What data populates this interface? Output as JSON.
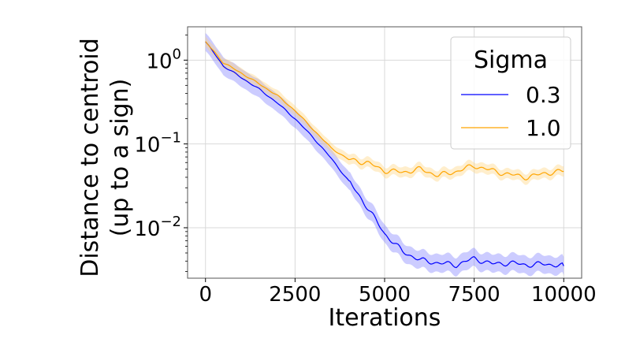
{
  "chart_data": {
    "type": "line",
    "xlabel": "Iterations",
    "ylabel_lines": [
      "Distance to centroid",
      "(up to a sign)"
    ],
    "yscale": "log",
    "xlim": [
      -500,
      10500
    ],
    "ylim": [
      0.0025,
      2.5
    ],
    "grid": true,
    "x_ticks": [
      0,
      2500,
      5000,
      7500,
      10000
    ],
    "x_tick_labels": [
      "0",
      "2500",
      "5000",
      "7500",
      "10000"
    ],
    "y_ticks": [
      {
        "value": 1,
        "base": "10",
        "exp": "0"
      },
      {
        "value": 0.1,
        "base": "10",
        "exp": "−1"
      },
      {
        "value": 0.01,
        "base": "10",
        "exp": "−2"
      }
    ],
    "legend": {
      "title": "Sigma",
      "position": "top-right"
    },
    "x": [
      0,
      250,
      500,
      1000,
      1500,
      2000,
      2500,
      3000,
      3500,
      4000,
      4500,
      5000,
      5500,
      6000,
      6500,
      7000,
      7500,
      8000,
      8500,
      9000,
      9500,
      10000
    ],
    "series": [
      {
        "name": "0.3",
        "color": "#0000ff",
        "band_color": "#8080ff",
        "values": [
          1.65,
          1.2,
          0.85,
          0.62,
          0.45,
          0.31,
          0.2,
          0.12,
          0.068,
          0.036,
          0.018,
          0.0085,
          0.0052,
          0.0041,
          0.0038,
          0.0036,
          0.0043,
          0.0037,
          0.0038,
          0.0036,
          0.0037,
          0.0035
        ],
        "spread": 1.28
      },
      {
        "name": "1.0",
        "color": "#ffa500",
        "band_color": "#ffd580",
        "values": [
          1.65,
          1.25,
          0.93,
          0.7,
          0.52,
          0.38,
          0.25,
          0.15,
          0.09,
          0.065,
          0.06,
          0.048,
          0.046,
          0.05,
          0.042,
          0.047,
          0.055,
          0.048,
          0.043,
          0.04,
          0.045,
          0.047
        ],
        "spread": 1.15
      }
    ]
  }
}
